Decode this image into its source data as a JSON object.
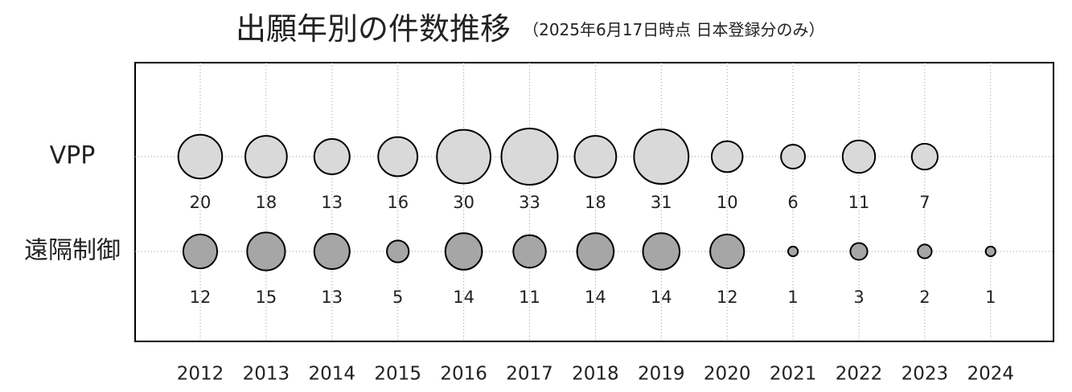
{
  "chart_data": {
    "type": "bubble",
    "title": "出願年別の件数推移",
    "subtitle": "（2025年6月17日時点 日本登録分のみ）",
    "categories": [
      "2012",
      "2013",
      "2014",
      "2015",
      "2016",
      "2017",
      "2018",
      "2019",
      "2020",
      "2021",
      "2022",
      "2023",
      "2024"
    ],
    "series": [
      {
        "name": "VPP",
        "color": "#d9d9d9",
        "values": [
          20,
          18,
          13,
          16,
          30,
          33,
          18,
          31,
          10,
          6,
          11,
          7,
          null
        ]
      },
      {
        "name": "遠隔制御",
        "color": "#a6a6a6",
        "values": [
          12,
          15,
          13,
          5,
          14,
          11,
          14,
          14,
          12,
          1,
          3,
          2,
          1
        ]
      }
    ],
    "grid": true
  }
}
